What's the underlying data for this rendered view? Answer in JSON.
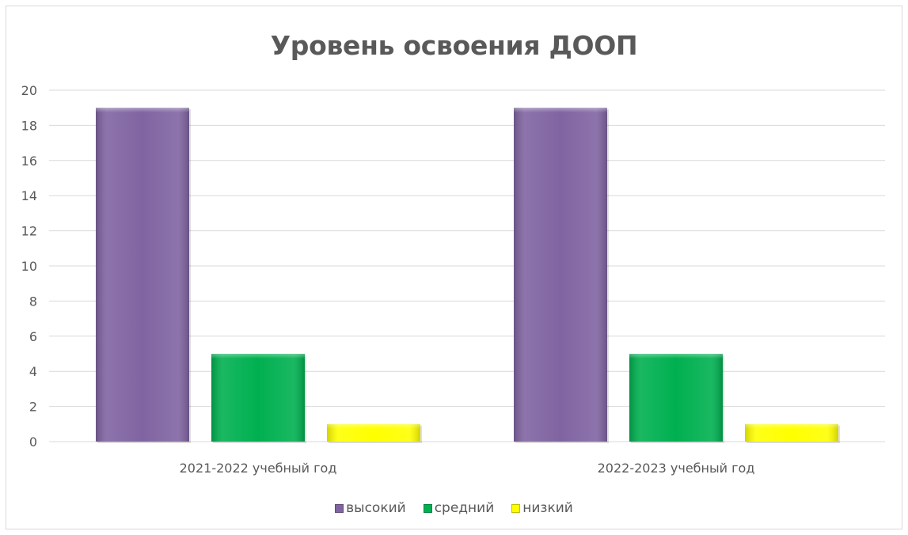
{
  "chart_data": {
    "type": "bar",
    "title": "Уровень освоения ДООП",
    "categories": [
      "2021-2022 учебный год",
      "2022-2023 учебный год"
    ],
    "series": [
      {
        "name": "высокий",
        "values": [
          19,
          19
        ],
        "color": "#8064a2"
      },
      {
        "name": "средний",
        "values": [
          5,
          5
        ],
        "color": "#00b050"
      },
      {
        "name": "низкий",
        "values": [
          1,
          1
        ],
        "color": "#ffff00"
      }
    ],
    "ylim": [
      0,
      20
    ],
    "yticks": [
      "0",
      "2",
      "4",
      "6",
      "8",
      "10",
      "12",
      "14",
      "16",
      "18",
      "20"
    ],
    "grid": true,
    "legend_position": "bottom"
  }
}
